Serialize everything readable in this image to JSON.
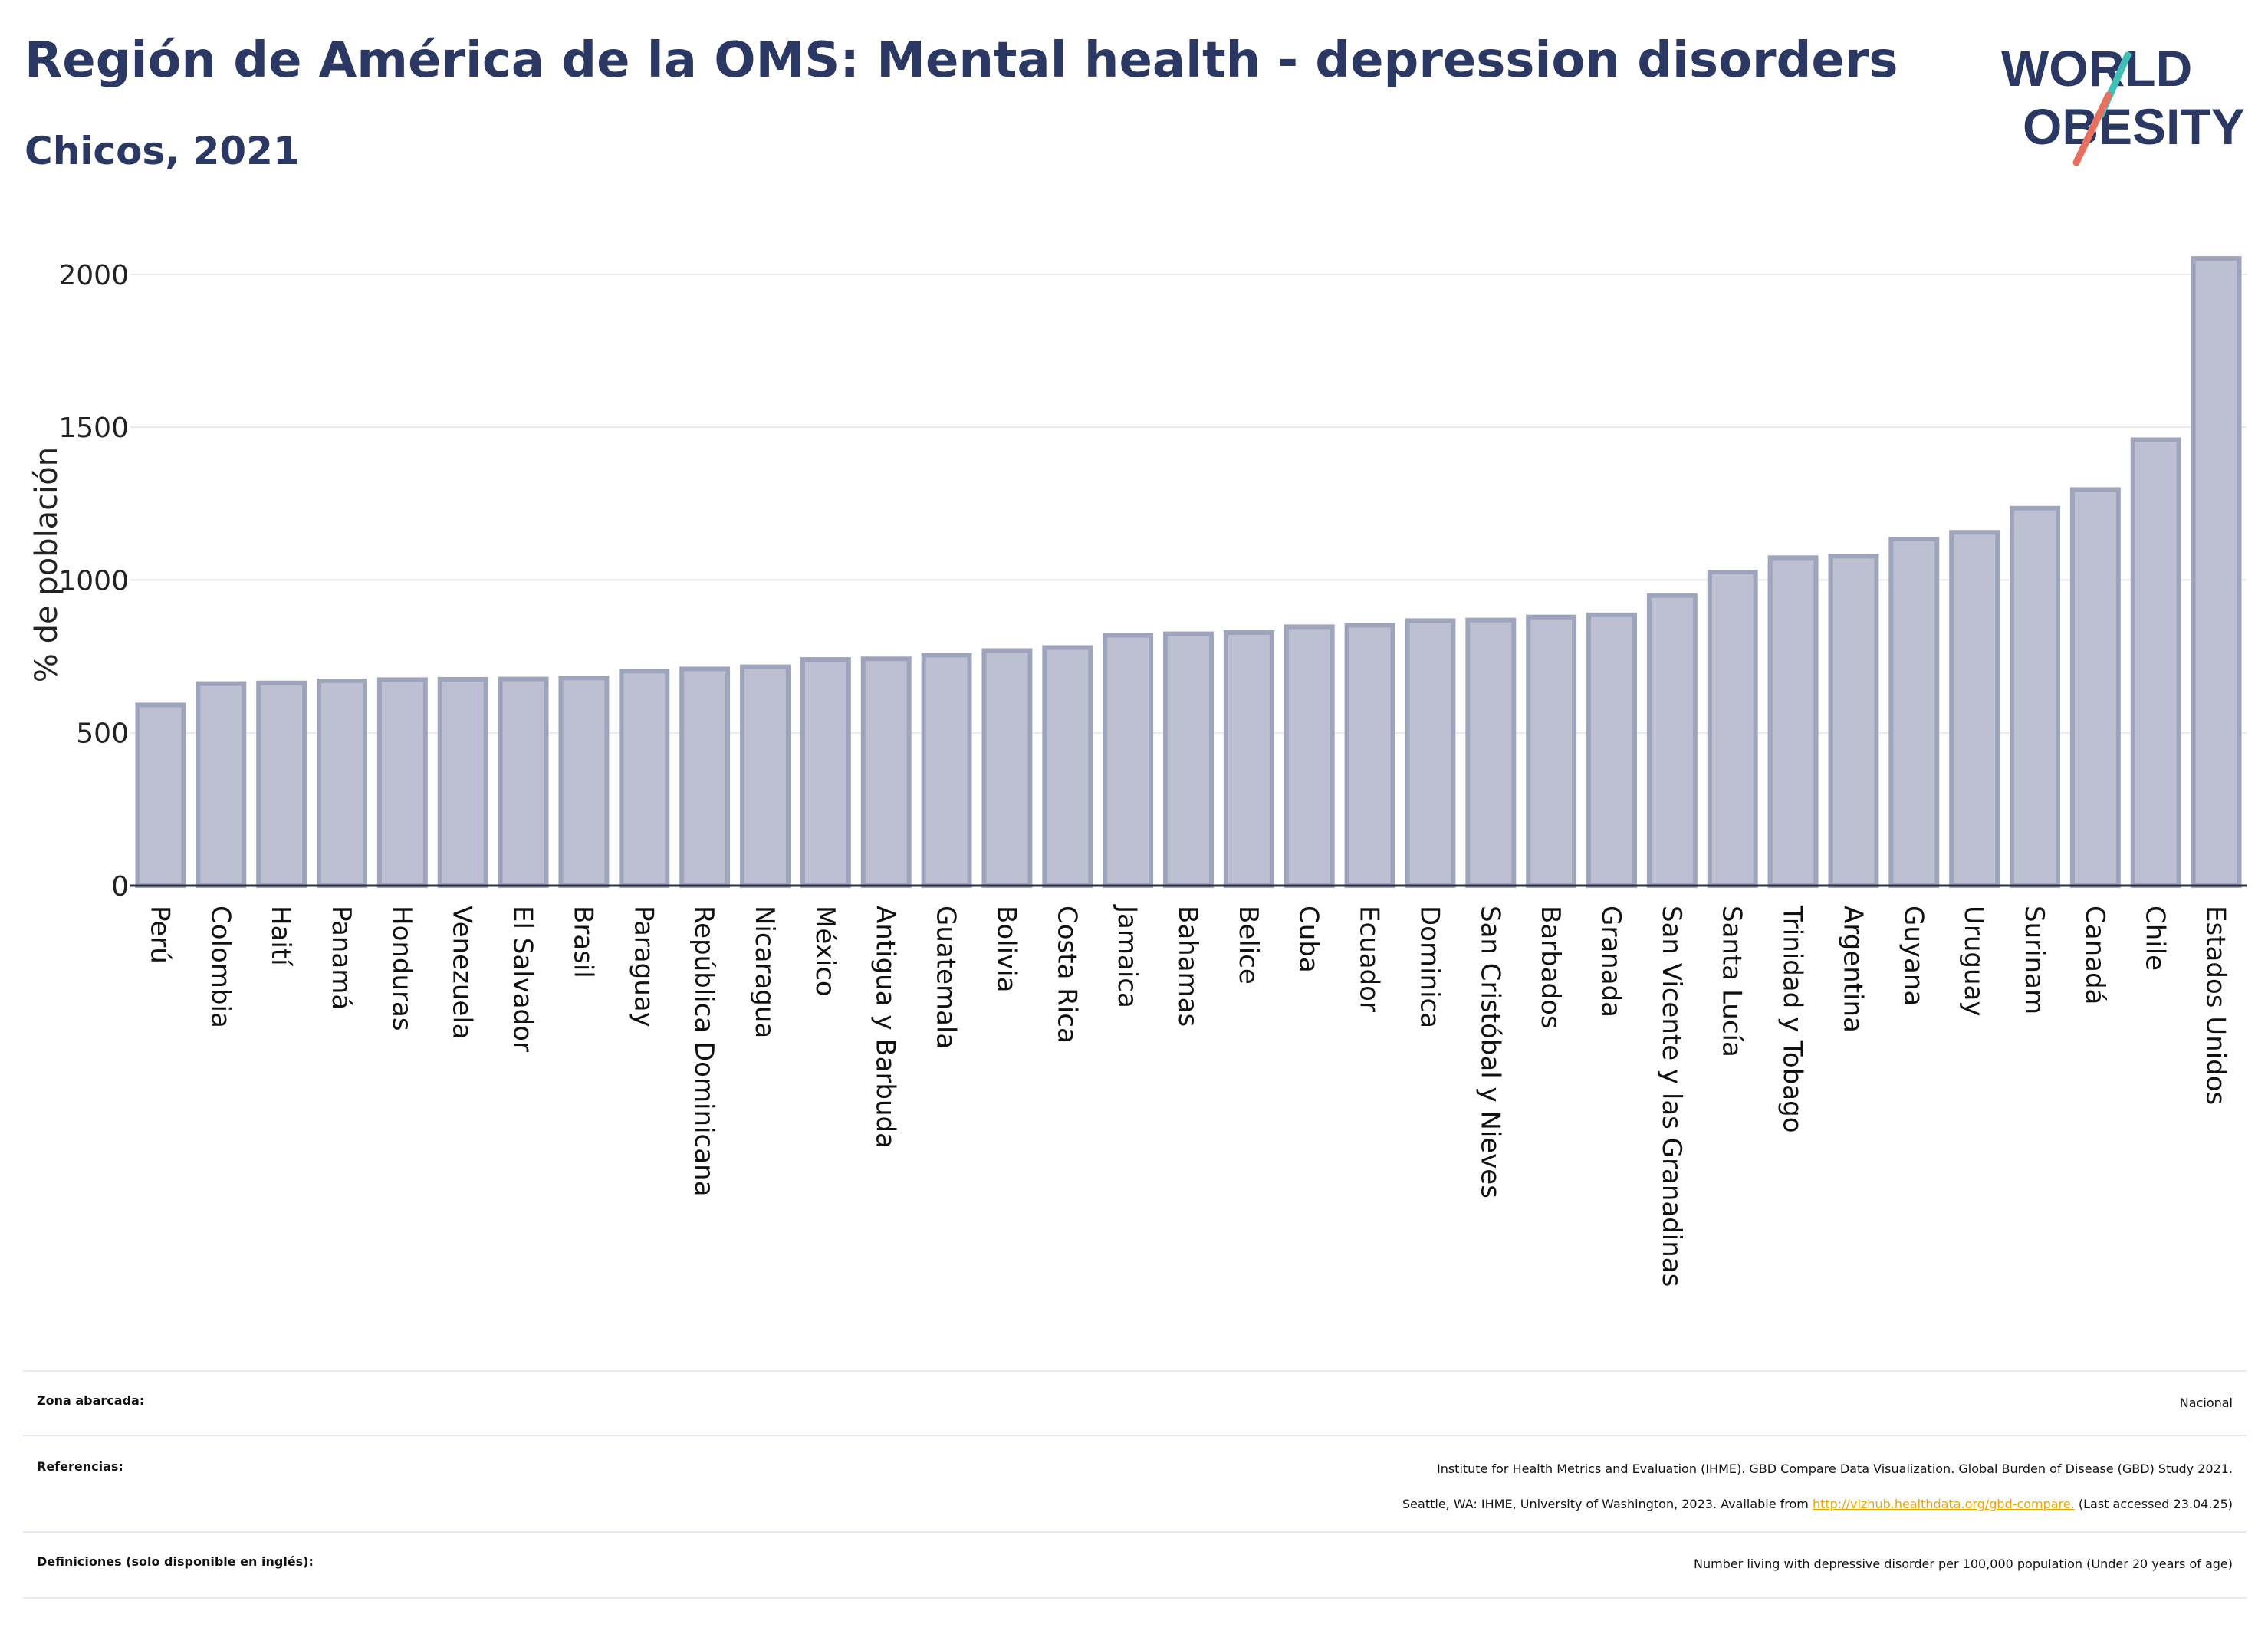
{
  "header": {
    "title": "Región de América de la OMS: Mental health - depression disorders",
    "subtitle": "Chicos, 2021",
    "logo_line1": "WORLD",
    "logo_line2": "OBESITY"
  },
  "colors": {
    "bar_fill": "#bcc0d0",
    "bar_stroke": "#9ea4bc",
    "title": "#2a3863",
    "grid": "#e6e8ef",
    "link": "#e8a600",
    "logo_teal": "#3fbfb6",
    "logo_coral": "#e8705f"
  },
  "chart_data": {
    "type": "bar",
    "ylabel": "% de población",
    "ylim": [
      0,
      2100
    ],
    "yticks": [
      0,
      500,
      1000,
      1500,
      2000
    ],
    "grid": true,
    "categories": [
      "Perú",
      "Colombia",
      "Haití",
      "Panamá",
      "Honduras",
      "Venezuela",
      "El Salvador",
      "Brasil",
      "Paraguay",
      "República Dominicana",
      "Nicaragua",
      "México",
      "Antigua y Barbuda",
      "Guatemala",
      "Bolivia",
      "Costa Rica",
      "Jamaica",
      "Bahamas",
      "Belice",
      "Cuba",
      "Ecuador",
      "Dominica",
      "San Cristóbal y Nieves",
      "Barbados",
      "Granada",
      "San Vicente y las Granadinas",
      "Santa Lucía",
      "Trinidad y Tobago",
      "Argentina",
      "Guyana",
      "Uruguay",
      "Surinam",
      "Canadá",
      "Chile",
      "Estados Unidos"
    ],
    "values": [
      591,
      661,
      663,
      670,
      674,
      675,
      676,
      679,
      702,
      709,
      716,
      740,
      742,
      754,
      769,
      779,
      819,
      824,
      828,
      847,
      852,
      867,
      869,
      879,
      886,
      949,
      1026,
      1073,
      1078,
      1134,
      1156,
      1235,
      1296,
      1459,
      2052
    ]
  },
  "footer": {
    "zona_label": "Zona abarcada:",
    "zona_value": "Nacional",
    "ref_label": "Referencias:",
    "ref_line1": "Institute for Health Metrics and Evaluation (IHME). GBD Compare Data Visualization. Global Burden of Disease (GBD) Study 2021.",
    "ref_line2_a": "Seattle, WA: IHME, University of Washington, 2023. Available from ",
    "ref_link": "http://vizhub.healthdata.org/gbd-compare.",
    "ref_line2_b": " (Last accessed 23.04.25)",
    "def_label": "Definiciones (solo disponible en inglés):",
    "def_value": "Number living with depressive disorder per 100,000 population (Under 20 years of age)"
  }
}
